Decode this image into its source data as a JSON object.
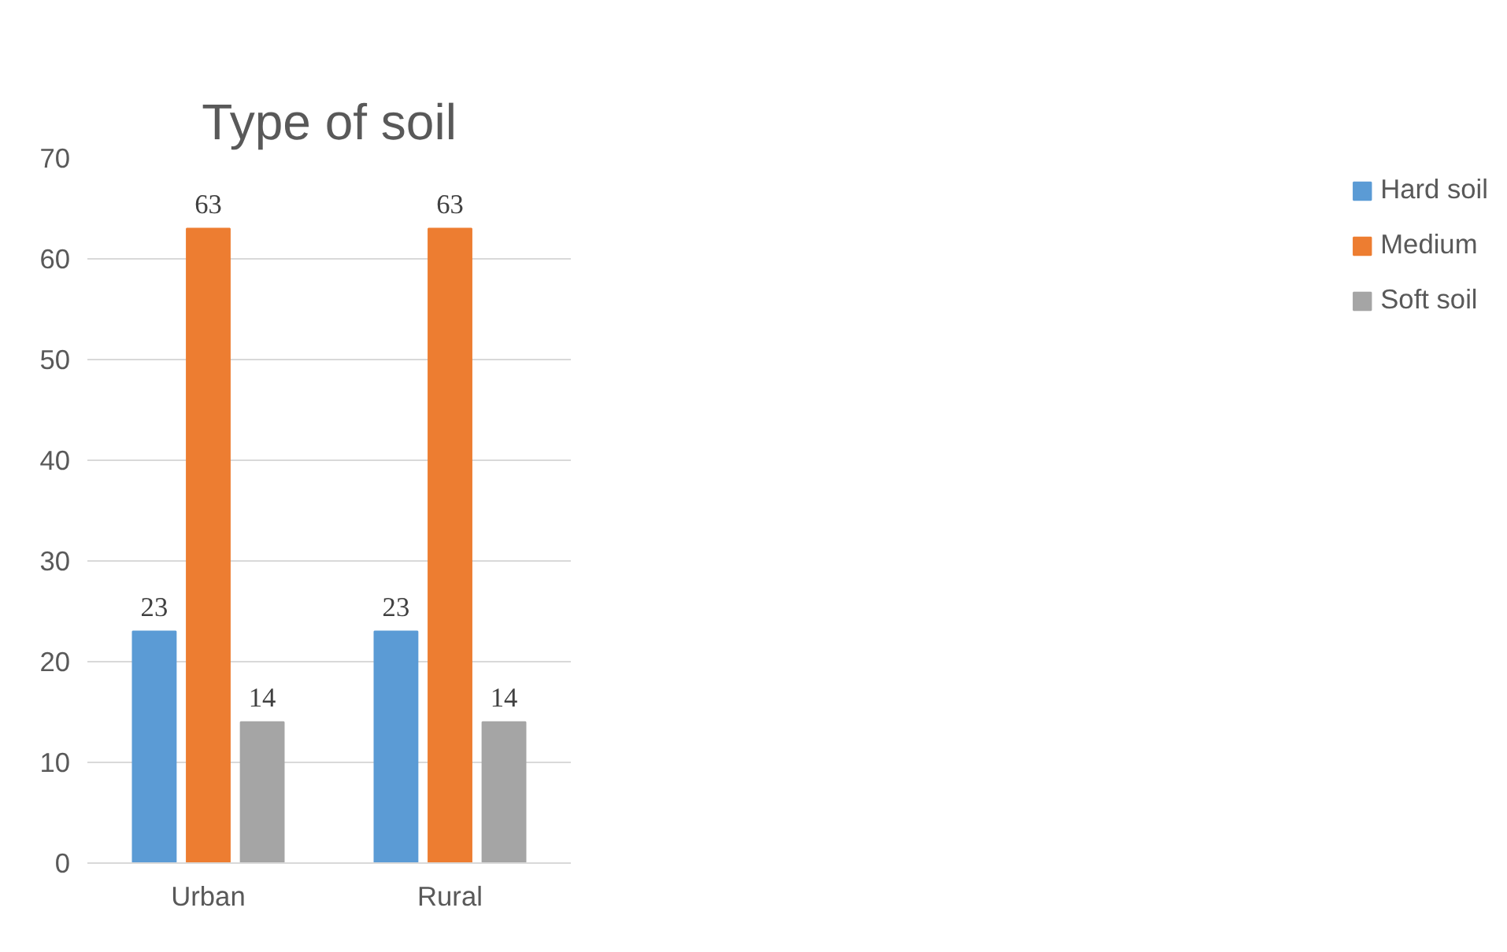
{
  "chart_data": {
    "type": "bar",
    "title": "Type of soil",
    "categories": [
      "Urban",
      "Rural"
    ],
    "series": [
      {
        "name": "Hard soil",
        "color": "#5b9bd5",
        "values": [
          23,
          23
        ]
      },
      {
        "name": "Medium",
        "color": "#ed7d31",
        "values": [
          63,
          63
        ]
      },
      {
        "name": "Soft soil",
        "color": "#a5a5a5",
        "values": [
          14,
          14
        ]
      }
    ],
    "ylim": [
      0,
      70
    ],
    "yticks": [
      0,
      10,
      20,
      30,
      40,
      50,
      60,
      70
    ],
    "grid": "y",
    "legend": "right",
    "data_labels": true
  }
}
